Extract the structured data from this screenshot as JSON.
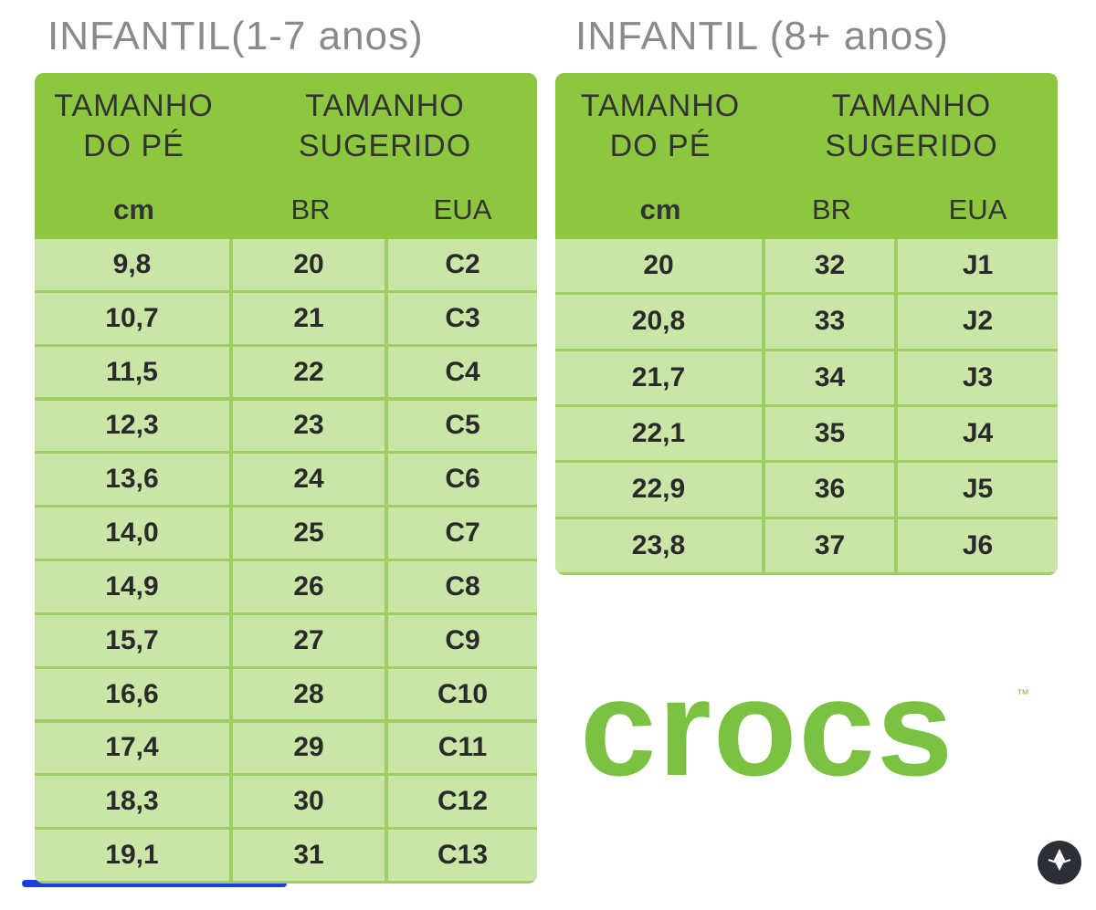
{
  "tables": [
    {
      "title": "INFANTIL(1-7 anos)",
      "header": {
        "foot_size": [
          "TAMANHO",
          "DO PÉ"
        ],
        "suggested_size": [
          "TAMANHO",
          "SUGERIDO"
        ]
      },
      "columns": [
        "cm",
        "BR",
        "EUA"
      ],
      "rows": [
        [
          "9,8",
          "20",
          "C2"
        ],
        [
          "10,7",
          "21",
          "C3"
        ],
        [
          "11,5",
          "22",
          "C4"
        ],
        [
          "12,3",
          "23",
          "C5"
        ],
        [
          "13,6",
          "24",
          "C6"
        ],
        [
          "14,0",
          "25",
          "C7"
        ],
        [
          "14,9",
          "26",
          "C8"
        ],
        [
          "15,7",
          "27",
          "C9"
        ],
        [
          "16,6",
          "28",
          "C10"
        ],
        [
          "17,4",
          "29",
          "C11"
        ],
        [
          "18,3",
          "30",
          "C12"
        ],
        [
          "19,1",
          "31",
          "C13"
        ]
      ]
    },
    {
      "title": "INFANTIL (8+ anos)",
      "header": {
        "foot_size": [
          "TAMANHO",
          "DO PÉ"
        ],
        "suggested_size": [
          "TAMANHO",
          "SUGERIDO"
        ]
      },
      "columns": [
        "cm",
        "BR",
        "EUA"
      ],
      "rows": [
        [
          "20",
          "32",
          "J1"
        ],
        [
          "20,8",
          "33",
          "J2"
        ],
        [
          "21,7",
          "34",
          "J3"
        ],
        [
          "22,1",
          "35",
          "J4"
        ],
        [
          "22,9",
          "36",
          "J5"
        ],
        [
          "23,8",
          "37",
          "J6"
        ]
      ]
    }
  ],
  "logo": {
    "text": "crocs",
    "trademark": "™"
  }
}
